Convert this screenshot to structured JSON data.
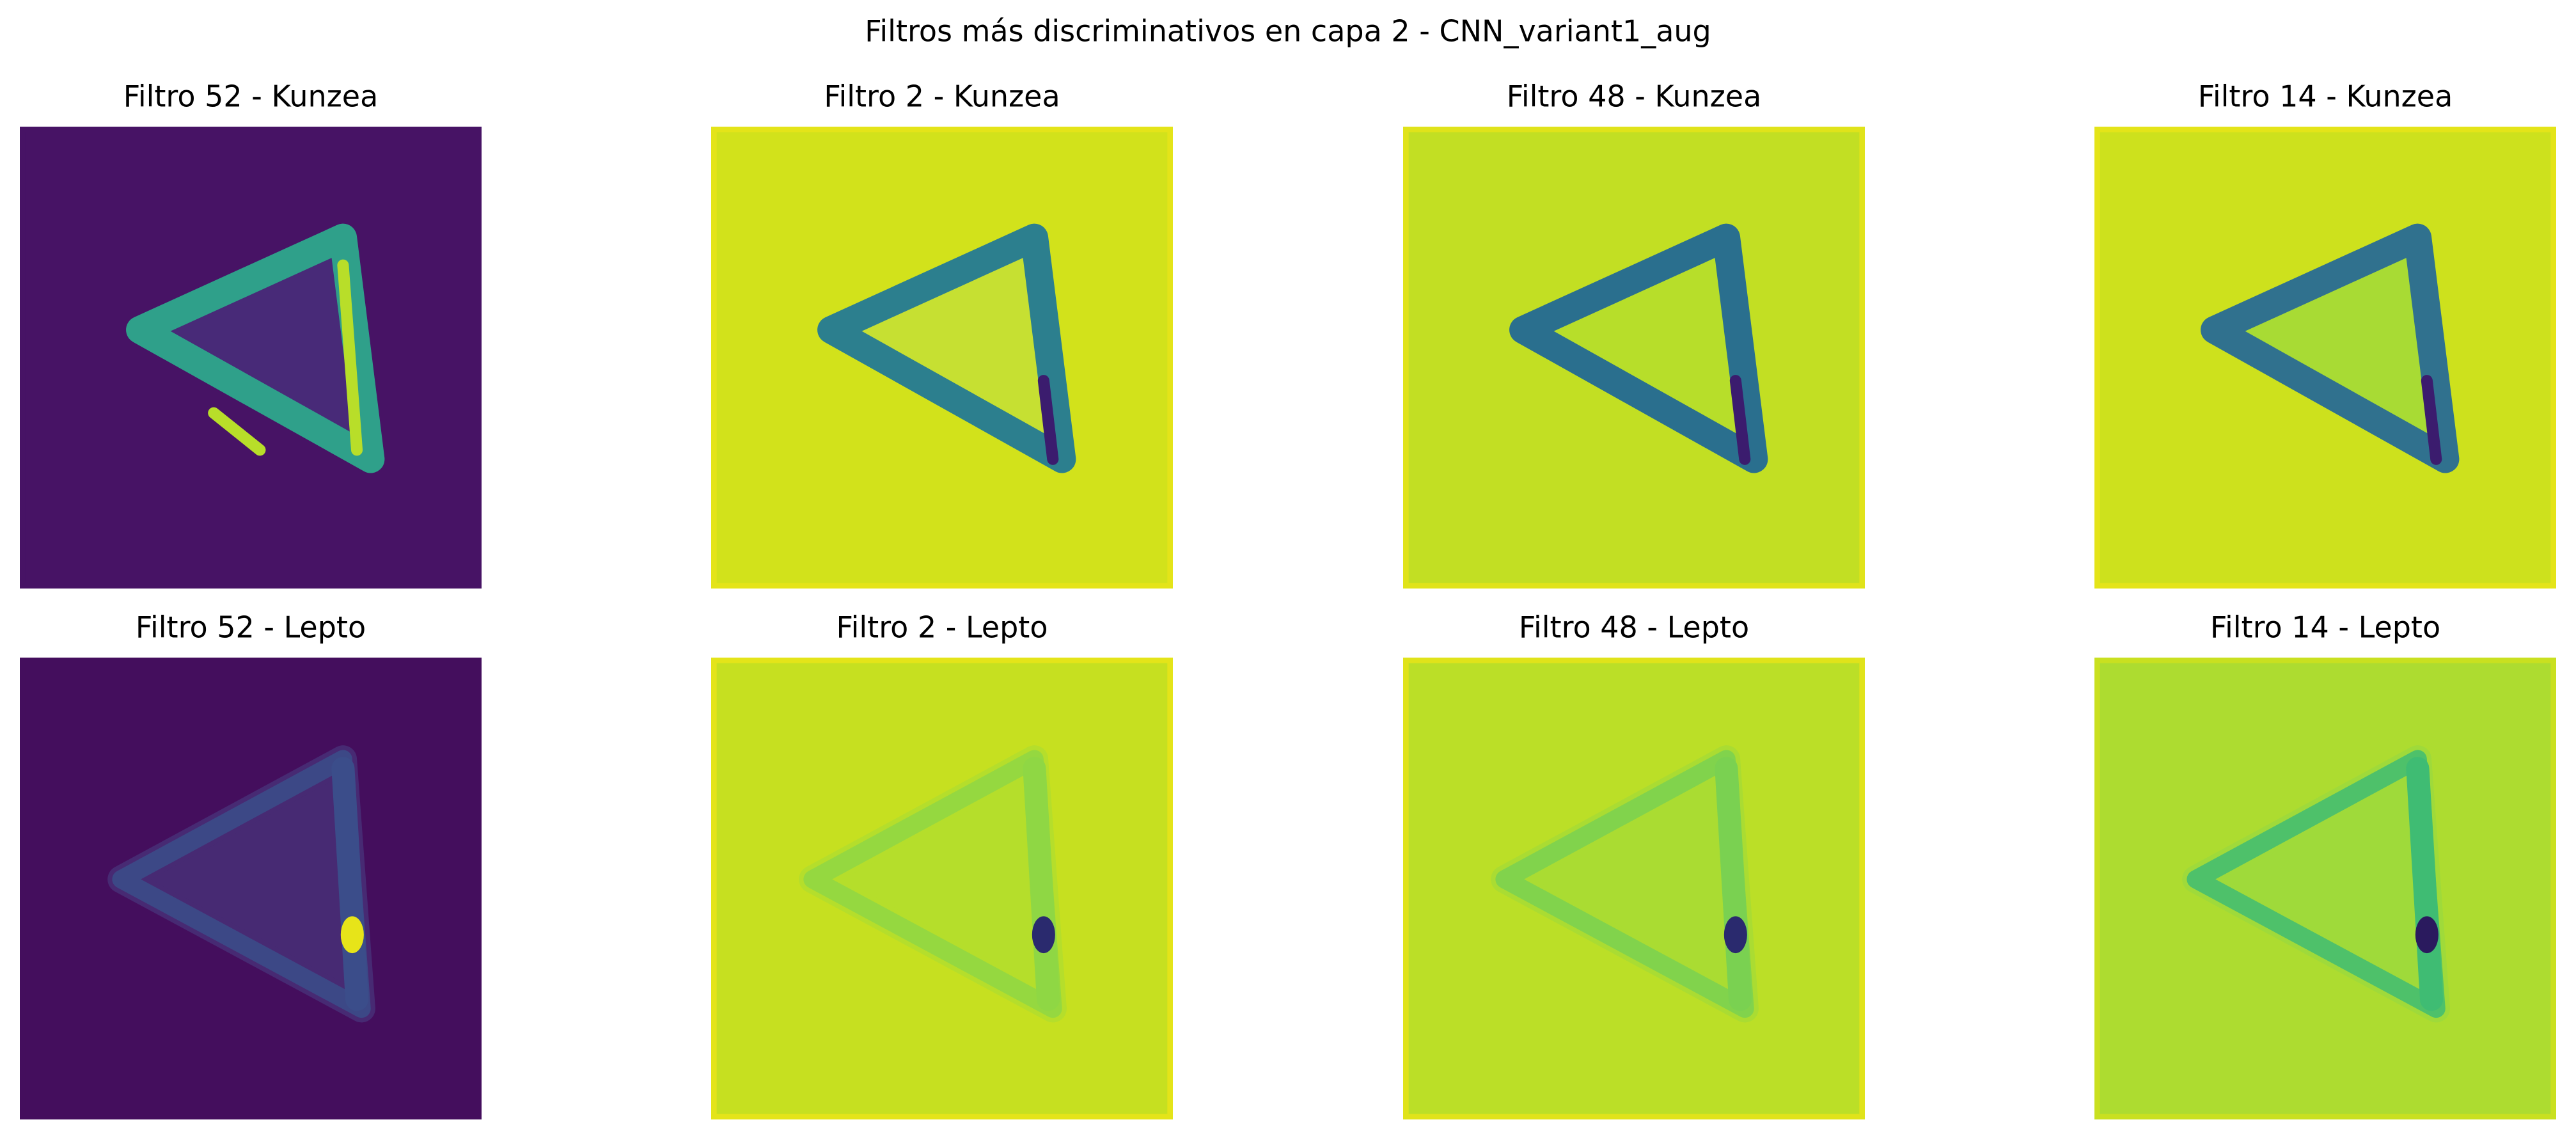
{
  "title": "Filtros más discriminativos en capa 2 - CNN_variant1_aug",
  "panels": [
    {
      "title": "Filtro 52 - Kunzea"
    },
    {
      "title": "Filtro 2 - Kunzea"
    },
    {
      "title": "Filtro 48 - Kunzea"
    },
    {
      "title": "Filtro 14 - Kunzea"
    },
    {
      "title": "Filtro 52 - Lepto"
    },
    {
      "title": "Filtro 2 - Lepto"
    },
    {
      "title": "Filtro 48 - Lepto"
    },
    {
      "title": "Filtro 14 - Lepto"
    }
  ]
}
